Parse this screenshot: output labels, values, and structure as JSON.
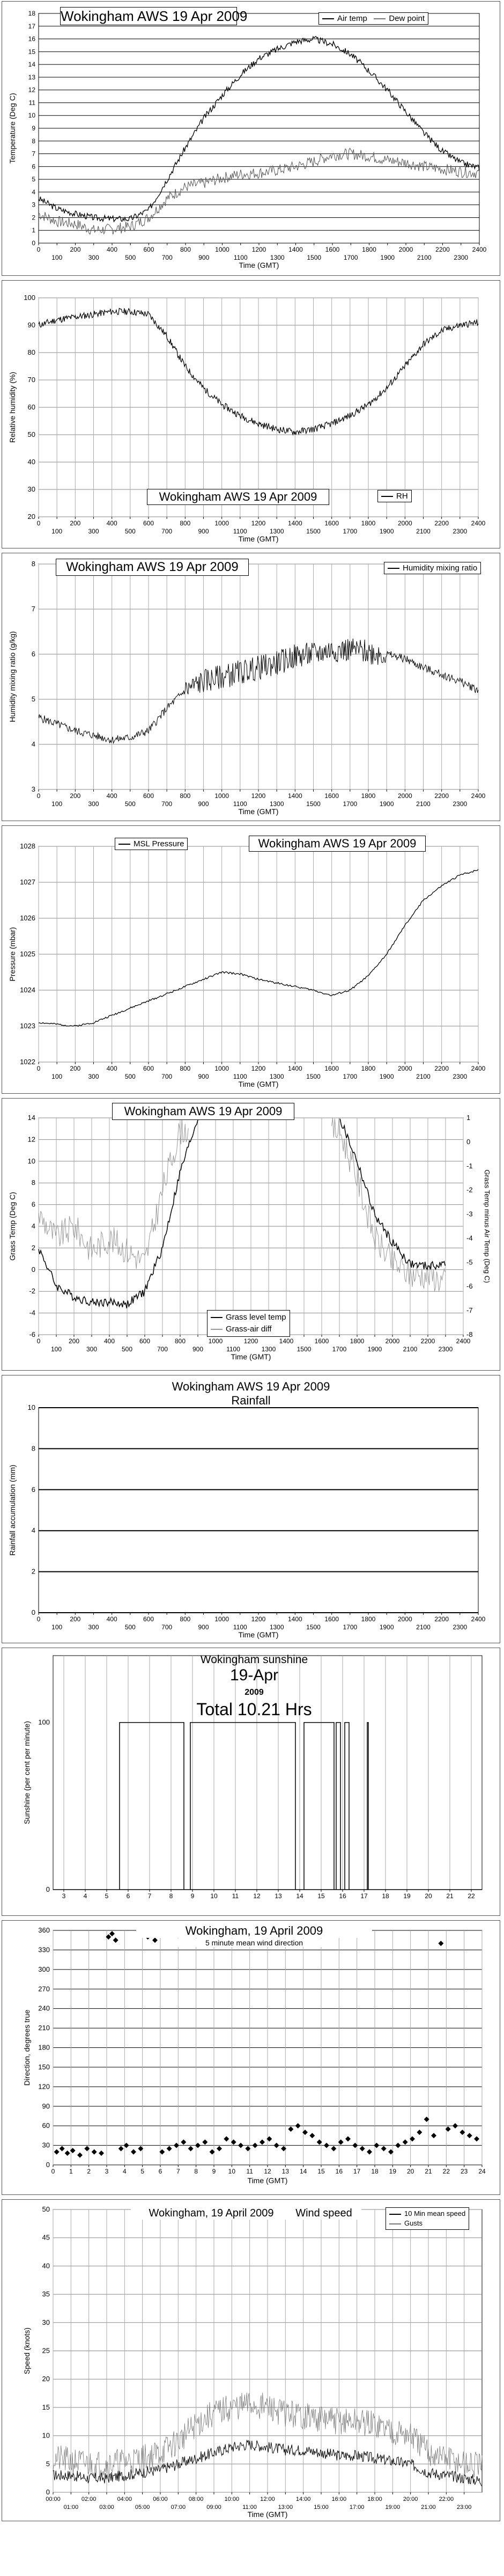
{
  "chart_data": [
    {
      "type": "line",
      "title": "Wokingham AWS 19 Apr 2009",
      "xlabel": "Time (GMT)",
      "ylabel": "Temperature (Deg C)",
      "xlim": [
        0,
        2400
      ],
      "ylim": [
        0,
        18
      ],
      "x_ticks_top": [
        "0",
        "200",
        "400",
        "600",
        "800",
        "1000",
        "1200",
        "1400",
        "1600",
        "1800",
        "2000",
        "2200",
        "2400"
      ],
      "x_ticks_bottom": [
        "100",
        "300",
        "500",
        "700",
        "900",
        "1100",
        "1300",
        "1500",
        "1700",
        "1900",
        "2100",
        "2300"
      ],
      "y_ticks": [
        "0",
        "1",
        "2",
        "3",
        "4",
        "5",
        "6",
        "7",
        "8",
        "9",
        "10",
        "11",
        "12",
        "13",
        "14",
        "15",
        "16",
        "17",
        "18"
      ],
      "grid": "horizontal",
      "legend": "top-right",
      "series": [
        {
          "name": "Air temp",
          "x": [
            0,
            100,
            200,
            300,
            400,
            500,
            600,
            700,
            800,
            900,
            1000,
            1100,
            1200,
            1300,
            1400,
            1500,
            1600,
            1700,
            1800,
            1900,
            2000,
            2100,
            2200,
            2300,
            2400
          ],
          "y": [
            3.5,
            2.7,
            2.3,
            2.0,
            1.9,
            1.9,
            2.6,
            5.0,
            7.5,
            9.8,
            11.6,
            13.2,
            14.5,
            15.2,
            15.8,
            16.0,
            15.6,
            14.8,
            13.5,
            12.0,
            10.3,
            8.6,
            7.2,
            6.3,
            5.9
          ]
        },
        {
          "name": "Dew point",
          "x": [
            0,
            100,
            200,
            300,
            400,
            500,
            600,
            700,
            800,
            900,
            1000,
            1100,
            1200,
            1300,
            1400,
            1500,
            1600,
            1700,
            1800,
            1900,
            2000,
            2100,
            2200,
            2300,
            2400
          ],
          "y": [
            2.3,
            1.7,
            1.5,
            1.0,
            1.1,
            1.3,
            2.0,
            3.5,
            4.4,
            4.7,
            5.1,
            5.4,
            5.5,
            5.7,
            6.0,
            6.4,
            6.9,
            7.0,
            6.8,
            6.5,
            6.3,
            6.0,
            5.8,
            5.6,
            5.5
          ]
        }
      ]
    },
    {
      "type": "line",
      "title": "Wokingham AWS 19 Apr 2009",
      "xlabel": "Time (GMT)",
      "ylabel": "Relative humidity (%)",
      "xlim": [
        0,
        2400
      ],
      "ylim": [
        20,
        100
      ],
      "x_ticks_top": [
        "0",
        "200",
        "400",
        "600",
        "800",
        "1000",
        "1200",
        "1400",
        "1600",
        "1800",
        "2000",
        "2200",
        "2400"
      ],
      "x_ticks_bottom": [
        "100",
        "300",
        "500",
        "700",
        "900",
        "1100",
        "1300",
        "1500",
        "1700",
        "1900",
        "2100",
        "2300"
      ],
      "y_ticks": [
        "20",
        "30",
        "40",
        "50",
        "60",
        "70",
        "80",
        "90",
        "100"
      ],
      "grid": "both",
      "legend": "bottom-right",
      "series": [
        {
          "name": "RH",
          "x": [
            0,
            100,
            200,
            300,
            400,
            500,
            600,
            700,
            800,
            900,
            1000,
            1100,
            1200,
            1300,
            1400,
            1500,
            1600,
            1700,
            1800,
            1900,
            2000,
            2100,
            2200,
            2300,
            2400
          ],
          "y": [
            90,
            92,
            93,
            94,
            95,
            95,
            94,
            86,
            75,
            67,
            61,
            57,
            54,
            52,
            51,
            52,
            54,
            57,
            61,
            67,
            75,
            83,
            88,
            90,
            91
          ]
        }
      ]
    },
    {
      "type": "line",
      "title": "Wokingham AWS 19 Apr 2009",
      "xlabel": "Time (GMT)",
      "ylabel": "Humidity mixing ratio (g/kg)",
      "xlim": [
        0,
        2400
      ],
      "ylim": [
        3,
        8
      ],
      "x_ticks_top": [
        "0",
        "200",
        "400",
        "600",
        "800",
        "1000",
        "1200",
        "1400",
        "1600",
        "1800",
        "2000",
        "2200",
        "2400"
      ],
      "x_ticks_bottom": [
        "100",
        "300",
        "500",
        "700",
        "900",
        "1100",
        "1300",
        "1500",
        "1700",
        "1900",
        "2100",
        "2300"
      ],
      "y_ticks": [
        "3",
        "4",
        "5",
        "6",
        "7",
        "8"
      ],
      "grid": "both",
      "legend": "top-right",
      "series": [
        {
          "name": "Humidity mixing ratio",
          "x": [
            0,
            100,
            200,
            300,
            400,
            500,
            600,
            700,
            800,
            900,
            1000,
            1100,
            1200,
            1300,
            1400,
            1500,
            1600,
            1700,
            1800,
            1900,
            2000,
            2100,
            2200,
            2300,
            2400
          ],
          "y": [
            4.6,
            4.45,
            4.3,
            4.2,
            4.1,
            4.15,
            4.3,
            4.8,
            5.2,
            5.4,
            5.5,
            5.6,
            5.7,
            5.8,
            5.95,
            6.0,
            6.1,
            6.1,
            6.05,
            6.0,
            5.9,
            5.7,
            5.55,
            5.4,
            5.2
          ]
        }
      ]
    },
    {
      "type": "line",
      "title": "Wokingham AWS 19 Apr 2009",
      "xlabel": "Time (GMT)",
      "ylabel": "Pressure (mbar)",
      "xlim": [
        0,
        2400
      ],
      "ylim": [
        1022,
        1028
      ],
      "x_ticks_top": [
        "0",
        "200",
        "400",
        "600",
        "800",
        "1000",
        "1200",
        "1400",
        "1600",
        "1800",
        "2000",
        "2200",
        "2400"
      ],
      "x_ticks_bottom": [
        "100",
        "300",
        "500",
        "700",
        "900",
        "1100",
        "1300",
        "1500",
        "1700",
        "1900",
        "2100",
        "2300"
      ],
      "y_ticks": [
        "1022",
        "1023",
        "1024",
        "1025",
        "1026",
        "1027",
        "1028"
      ],
      "grid": "both",
      "legend": "top-left",
      "series": [
        {
          "name": "MSL Pressure",
          "x": [
            0,
            100,
            200,
            300,
            400,
            500,
            600,
            700,
            800,
            900,
            1000,
            1100,
            1200,
            1300,
            1400,
            1500,
            1600,
            1700,
            1800,
            1900,
            2000,
            2100,
            2200,
            2300,
            2400
          ],
          "y": [
            1023.1,
            1023.05,
            1023.0,
            1023.1,
            1023.3,
            1023.5,
            1023.7,
            1023.9,
            1024.1,
            1024.3,
            1024.5,
            1024.45,
            1024.3,
            1024.2,
            1024.1,
            1024.0,
            1023.85,
            1024.0,
            1024.4,
            1025.0,
            1025.8,
            1026.5,
            1026.9,
            1027.2,
            1027.35
          ]
        }
      ]
    },
    {
      "type": "line",
      "title": "Wokingham AWS 19 Apr 2009",
      "xlabel": "Time (GMT)",
      "ylabel": "Grass Temp (Deg C)",
      "y2label": "Grass Temp minus Air Temp (Deg C)",
      "xlim": [
        0,
        2400
      ],
      "ylim": [
        -6,
        14
      ],
      "y2lim": [
        -8,
        1
      ],
      "x_ticks_top": [
        "0",
        "200",
        "400",
        "600",
        "800",
        "1000",
        "1200",
        "1400",
        "1600",
        "1800",
        "2000",
        "2200",
        "2400"
      ],
      "x_ticks_bottom": [
        "100",
        "300",
        "500",
        "700",
        "900",
        "1100",
        "1300",
        "1500",
        "1700",
        "1900",
        "2100",
        "2300"
      ],
      "y_ticks": [
        "-6",
        "-4",
        "-2",
        "0",
        "2",
        "4",
        "6",
        "8",
        "10",
        "12",
        "14"
      ],
      "y2_ticks": [
        "-8",
        "-7",
        "-6",
        "-5",
        "-4",
        "-3",
        "-2",
        "-1",
        "0",
        "1"
      ],
      "grid": "both",
      "legend": "bottom-center",
      "series": [
        {
          "name": "Grass level temp",
          "x": [
            0,
            100,
            200,
            300,
            400,
            500,
            600,
            700,
            800,
            900,
            1700,
            1800,
            1900,
            2000,
            2100,
            2200,
            2300
          ],
          "y": [
            2.0,
            -1.5,
            -2.5,
            -3.0,
            -3.0,
            -3.2,
            -2.0,
            2.0,
            9.0,
            14.0,
            14.0,
            10.0,
            5.0,
            2.5,
            0.5,
            0.3,
            0.5
          ]
        },
        {
          "name": "Grass-air diff",
          "x": [
            0,
            100,
            200,
            300,
            400,
            500,
            600,
            700,
            800,
            1700,
            1800,
            1900,
            2000,
            2100,
            2200,
            2300
          ],
          "y2": [
            -3.0,
            -4.0,
            -3.5,
            -4.5,
            -4.0,
            -4.5,
            -5.0,
            -2.0,
            0.5,
            0.5,
            -1.5,
            -4.0,
            -5.0,
            -5.5,
            -5.5,
            -5.8
          ]
        }
      ]
    },
    {
      "type": "line",
      "title": "Wokingham AWS 19 Apr 2009",
      "subtitle": "Rainfall",
      "xlabel": "Time (GMT)",
      "ylabel": "Rainfall accumulation (mm)",
      "xlim": [
        0,
        2400
      ],
      "ylim": [
        0,
        10
      ],
      "x_ticks_top": [
        "0",
        "200",
        "400",
        "600",
        "800",
        "1000",
        "1200",
        "1400",
        "1600",
        "1800",
        "2000",
        "2200",
        "2400"
      ],
      "x_ticks_bottom": [
        "100",
        "300",
        "500",
        "700",
        "900",
        "1100",
        "1300",
        "1500",
        "1700",
        "1900",
        "2100",
        "2300"
      ],
      "y_ticks": [
        "0",
        "2",
        "4",
        "6",
        "8",
        "10"
      ],
      "grid": "horizontal",
      "series": [
        {
          "x": [
            0,
            2400
          ],
          "y": [
            0,
            0
          ]
        }
      ]
    },
    {
      "type": "line",
      "title": "Wokingham sunshine",
      "date": "19-Apr",
      "year": "2009",
      "total": "Total 10.21 Hrs",
      "xlabel": "",
      "ylabel": "Sunshine (per cent per minute)",
      "xlim": [
        2.5,
        22.5
      ],
      "ylim": [
        0,
        140
      ],
      "x_ticks": [
        "3",
        "4",
        "5",
        "6",
        "7",
        "8",
        "9",
        "10",
        "11",
        "12",
        "13",
        "14",
        "15",
        "16",
        "17",
        "18",
        "19",
        "20",
        "21",
        "22"
      ],
      "y_ticks": [
        "0",
        "100"
      ],
      "grid": "vertical",
      "sun_intervals": [
        [
          5.6,
          8.6
        ],
        [
          8.9,
          13.8
        ],
        [
          14.2,
          15.6
        ],
        [
          15.7,
          15.9
        ],
        [
          16.1,
          16.3
        ],
        [
          17.15,
          17.2
        ]
      ]
    },
    {
      "type": "scatter",
      "title": "Wokingham,  19 April 2009",
      "subtitle": "5 minute mean wind direction",
      "xlabel": "Time (GMT)",
      "ylabel": "Direction, degrees true",
      "xlim": [
        0,
        24
      ],
      "ylim": [
        0,
        360
      ],
      "x_ticks": [
        "0",
        "1",
        "2",
        "3",
        "4",
        "5",
        "6",
        "7",
        "8",
        "9",
        "10",
        "11",
        "12",
        "13",
        "14",
        "15",
        "16",
        "17",
        "18",
        "19",
        "20",
        "21",
        "22",
        "23",
        "24"
      ],
      "y_ticks": [
        "0",
        "30",
        "60",
        "90",
        "120",
        "150",
        "180",
        "210",
        "240",
        "270",
        "300",
        "330",
        "360"
      ],
      "grid": "both",
      "x": [
        0.2,
        0.5,
        0.8,
        1.1,
        1.5,
        1.9,
        2.3,
        2.7,
        3.1,
        3.3,
        3.5,
        3.8,
        4.1,
        4.5,
        4.9,
        5.3,
        5.7,
        6.1,
        6.5,
        6.9,
        7.3,
        7.7,
        8.1,
        8.5,
        8.9,
        9.3,
        9.7,
        10.1,
        10.5,
        10.9,
        11.3,
        11.7,
        12.1,
        12.5,
        12.9,
        13.3,
        13.7,
        14.1,
        14.5,
        14.9,
        15.3,
        15.7,
        16.1,
        16.5,
        16.9,
        17.3,
        17.7,
        18.1,
        18.5,
        18.9,
        19.3,
        19.7,
        20.1,
        20.5,
        20.9,
        21.3,
        21.7,
        22.1,
        22.5,
        22.9,
        23.3,
        23.7
      ],
      "y": [
        20,
        25,
        18,
        22,
        15,
        25,
        20,
        18,
        350,
        355,
        345,
        25,
        30,
        20,
        25,
        350,
        345,
        20,
        25,
        30,
        35,
        25,
        30,
        35,
        20,
        25,
        40,
        35,
        30,
        25,
        30,
        35,
        40,
        30,
        25,
        55,
        60,
        50,
        45,
        35,
        30,
        25,
        35,
        40,
        30,
        25,
        20,
        30,
        25,
        20,
        30,
        35,
        40,
        50,
        70,
        45,
        340,
        55,
        60,
        50,
        45,
        40
      ]
    },
    {
      "type": "line",
      "title": "Wokingham,  19 April 2009",
      "subtitle": "Wind speed",
      "xlabel": "Time (GMT)",
      "ylabel": "Speed (knots)",
      "xlim": [
        0,
        24
      ],
      "ylim": [
        0,
        50
      ],
      "x_ticks_top": [
        "00:00",
        "02:00",
        "04:00",
        "06:00",
        "08:00",
        "10:00",
        "12:00",
        "14:00",
        "16:00",
        "18:00",
        "20:00",
        "22:00"
      ],
      "x_ticks_bottom": [
        "01:00",
        "03:00",
        "05:00",
        "07:00",
        "09:00",
        "11:00",
        "13:00",
        "15:00",
        "17:00",
        "19:00",
        "21:00",
        "23:00"
      ],
      "y_ticks": [
        "0",
        "5",
        "10",
        "15",
        "20",
        "25",
        "30",
        "35",
        "40",
        "45",
        "50"
      ],
      "grid": "both",
      "legend": "top-right",
      "series": [
        {
          "name": "10 Min mean speed",
          "x": [
            0,
            1,
            2,
            3,
            4,
            5,
            6,
            7,
            8,
            9,
            10,
            11,
            12,
            13,
            14,
            15,
            16,
            17,
            18,
            19,
            20,
            21,
            22,
            23,
            24
          ],
          "y": [
            3,
            3,
            2.5,
            2.5,
            3,
            3.5,
            4,
            5,
            6,
            7,
            8,
            8.5,
            8,
            7.5,
            7.5,
            7,
            6.5,
            6.5,
            6,
            5.5,
            5,
            3.5,
            3,
            2.5,
            2
          ]
        },
        {
          "name": "Gusts",
          "x": [
            0,
            1,
            2,
            3,
            4,
            5,
            6,
            7,
            8,
            9,
            10,
            11,
            12,
            13,
            14,
            15,
            16,
            17,
            18,
            19,
            20,
            21,
            22,
            23,
            24
          ],
          "y": [
            6,
            5.5,
            5,
            5,
            5.5,
            6,
            7,
            9,
            12,
            14,
            15,
            15.5,
            15,
            14,
            13.5,
            13,
            12.5,
            12.5,
            12,
            11,
            10,
            7,
            6,
            5,
            4.5
          ]
        }
      ]
    }
  ]
}
